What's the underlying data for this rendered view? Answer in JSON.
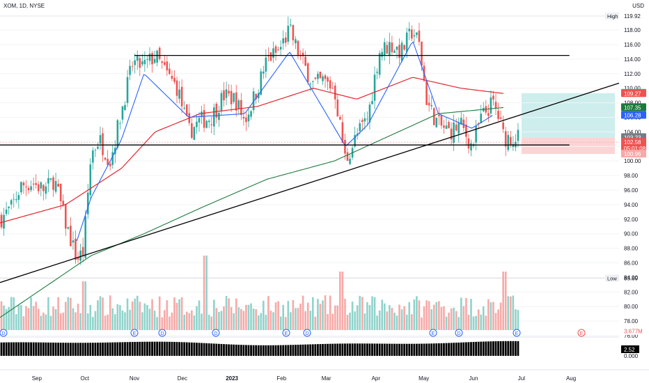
{
  "header": {
    "symbol": "XOM, 1D, NYSE",
    "currency": "USD"
  },
  "price_axis": {
    "ticks": [
      118,
      116,
      114,
      112,
      110,
      108,
      106,
      104,
      102,
      100,
      98,
      96,
      94,
      92,
      90,
      88,
      86,
      84,
      82,
      80,
      78,
      76
    ]
  },
  "price_labels": [
    {
      "key": "high_tag",
      "text": "High",
      "kind": "text"
    },
    {
      "key": "high_val",
      "text": "119.92",
      "kind": "plain"
    },
    {
      "key": "p10932",
      "text": "109.32",
      "kind": "teal"
    },
    {
      "key": "p10927",
      "text": "109.27",
      "kind": "red"
    },
    {
      "key": "p10735",
      "text": "107.35",
      "kind": "green"
    },
    {
      "key": "p10628",
      "text": "106.28",
      "kind": "blue"
    },
    {
      "key": "p10323",
      "text": "103.23",
      "kind": "gray"
    },
    {
      "key": "p10258",
      "text": "102.58",
      "kind": "red"
    },
    {
      "key": "cd",
      "text": "05:01:08",
      "kind": "red"
    },
    {
      "key": "p10096",
      "text": "100.96",
      "kind": "pink"
    },
    {
      "key": "low_tag",
      "text": "Low",
      "kind": "text"
    },
    {
      "key": "low_val",
      "text": "83.89",
      "kind": "plain"
    },
    {
      "key": "vol",
      "text": "3.677M",
      "kind": "pinktext"
    }
  ],
  "osc_axis": {
    "value": "2.52",
    "zero": "0.000"
  },
  "time_axis": [
    "Sep",
    "Oct",
    "Nov",
    "Dec",
    "2023",
    "Feb",
    "Mar",
    "Apr",
    "May",
    "Jun",
    "Jul",
    "Aug"
  ],
  "event_markers": [
    "D",
    "E",
    "D",
    "D",
    "E",
    "D",
    "E",
    "D",
    "E",
    "E"
  ],
  "colors": {
    "up": "#26a69a",
    "down": "#ef5350",
    "ma_fast": "#2962ff",
    "ma_mid": "#e5242b",
    "ma_slow": "#1b7a3c",
    "vol_up": "#8fd3cb",
    "vol_down": "#f7a9a7",
    "osc": "#000000",
    "zone_target": "#cdeeed",
    "zone_stop": "#fbd5d5"
  },
  "chart_data": {
    "type": "candlestick",
    "symbol": "XOM",
    "interval": "1D",
    "exchange": "NYSE",
    "currency": "USD",
    "x_range": [
      "2022-08-09",
      "2023-08-31"
    ],
    "y_range": [
      76,
      121
    ],
    "high": 119.92,
    "low": 83.89,
    "last_price": 102.58,
    "series": [
      {
        "name": "close",
        "points": [
          [
            "2022-08-09",
            92.0
          ],
          [
            "2022-08-16",
            93.5
          ],
          [
            "2022-08-22",
            96.5
          ],
          [
            "2022-08-29",
            97.0
          ],
          [
            "2022-09-06",
            96.0
          ],
          [
            "2022-09-12",
            97.5
          ],
          [
            "2022-09-19",
            91.5
          ],
          [
            "2022-09-26",
            86.5
          ],
          [
            "2022-09-30",
            87.5
          ],
          [
            "2022-10-05",
            101.0
          ],
          [
            "2022-10-10",
            103.0
          ],
          [
            "2022-10-17",
            100.0
          ],
          [
            "2022-10-24",
            107.0
          ],
          [
            "2022-10-31",
            113.5
          ],
          [
            "2022-11-07",
            113.0
          ],
          [
            "2022-11-14",
            114.5
          ],
          [
            "2022-11-21",
            112.0
          ],
          [
            "2022-11-28",
            110.0
          ],
          [
            "2022-12-05",
            104.0
          ],
          [
            "2022-12-12",
            105.5
          ],
          [
            "2022-12-19",
            106.0
          ],
          [
            "2022-12-27",
            109.0
          ],
          [
            "2023-01-03",
            108.5
          ],
          [
            "2023-01-09",
            105.5
          ],
          [
            "2023-01-17",
            110.0
          ],
          [
            "2023-01-23",
            114.0
          ],
          [
            "2023-01-30",
            115.0
          ],
          [
            "2023-02-06",
            118.0
          ],
          [
            "2023-02-13",
            114.0
          ],
          [
            "2023-02-21",
            110.5
          ],
          [
            "2023-02-27",
            111.0
          ],
          [
            "2023-03-06",
            110.0
          ],
          [
            "2023-03-13",
            100.0
          ],
          [
            "2023-03-20",
            103.5
          ],
          [
            "2023-03-27",
            106.0
          ],
          [
            "2023-04-03",
            115.0
          ],
          [
            "2023-04-10",
            116.0
          ],
          [
            "2023-04-17",
            115.0
          ],
          [
            "2023-04-24",
            118.0
          ],
          [
            "2023-04-28",
            116.0
          ],
          [
            "2023-05-03",
            108.0
          ],
          [
            "2023-05-10",
            105.0
          ],
          [
            "2023-05-17",
            104.0
          ],
          [
            "2023-05-24",
            105.0
          ],
          [
            "2023-05-31",
            102.0
          ],
          [
            "2023-06-06",
            106.0
          ],
          [
            "2023-06-13",
            108.0
          ],
          [
            "2023-06-16",
            106.5
          ],
          [
            "2023-06-20",
            103.23
          ]
        ]
      },
      {
        "name": "ma_fast",
        "points": [
          [
            "2022-09-26",
            89.0
          ],
          [
            "2022-10-05",
            95.0
          ],
          [
            "2022-10-24",
            103.0
          ],
          [
            "2022-11-07",
            112.0
          ],
          [
            "2022-12-05",
            106.0
          ],
          [
            "2023-01-09",
            106.5
          ],
          [
            "2023-02-06",
            115.0
          ],
          [
            "2023-03-13",
            102.0
          ],
          [
            "2023-03-27",
            105.0
          ],
          [
            "2023-04-24",
            116.5
          ],
          [
            "2023-05-10",
            106.5
          ],
          [
            "2023-05-31",
            104.5
          ],
          [
            "2023-06-13",
            106.28
          ]
        ]
      },
      {
        "name": "ma_mid",
        "points": [
          [
            "2022-08-09",
            91.5
          ],
          [
            "2022-09-19",
            94.0
          ],
          [
            "2022-10-24",
            99.0
          ],
          [
            "2022-11-14",
            104.0
          ],
          [
            "2022-12-12",
            106.5
          ],
          [
            "2023-01-17",
            107.5
          ],
          [
            "2023-02-21",
            110.0
          ],
          [
            "2023-03-20",
            108.5
          ],
          [
            "2023-04-24",
            111.5
          ],
          [
            "2023-05-24",
            110.0
          ],
          [
            "2023-06-20",
            109.27
          ]
        ]
      },
      {
        "name": "ma_slow",
        "points": [
          [
            "2022-08-09",
            78.5
          ],
          [
            "2022-10-05",
            87.0
          ],
          [
            "2022-11-07",
            90.0
          ],
          [
            "2022-12-12",
            93.5
          ],
          [
            "2023-01-23",
            97.5
          ],
          [
            "2023-03-06",
            100.0
          ],
          [
            "2023-04-10",
            103.5
          ],
          [
            "2023-05-10",
            106.5
          ],
          [
            "2023-06-20",
            107.35
          ]
        ]
      }
    ],
    "annotations": [
      {
        "type": "horizontal",
        "y": 114.5,
        "from": "2022-11-01",
        "to": "2023-07-31"
      },
      {
        "type": "horizontal",
        "y": 102.2,
        "from": "2022-08-09",
        "to": "2023-07-31"
      },
      {
        "type": "trendline",
        "from": [
          "2022-08-09",
          83.3
        ],
        "to": [
          "2023-08-31",
          110.7
        ]
      },
      {
        "type": "position",
        "entry": 103.23,
        "target": 109.32,
        "stop": 100.96
      }
    ],
    "volume_last": "3.677M",
    "oscillator_last": 2.52
  }
}
